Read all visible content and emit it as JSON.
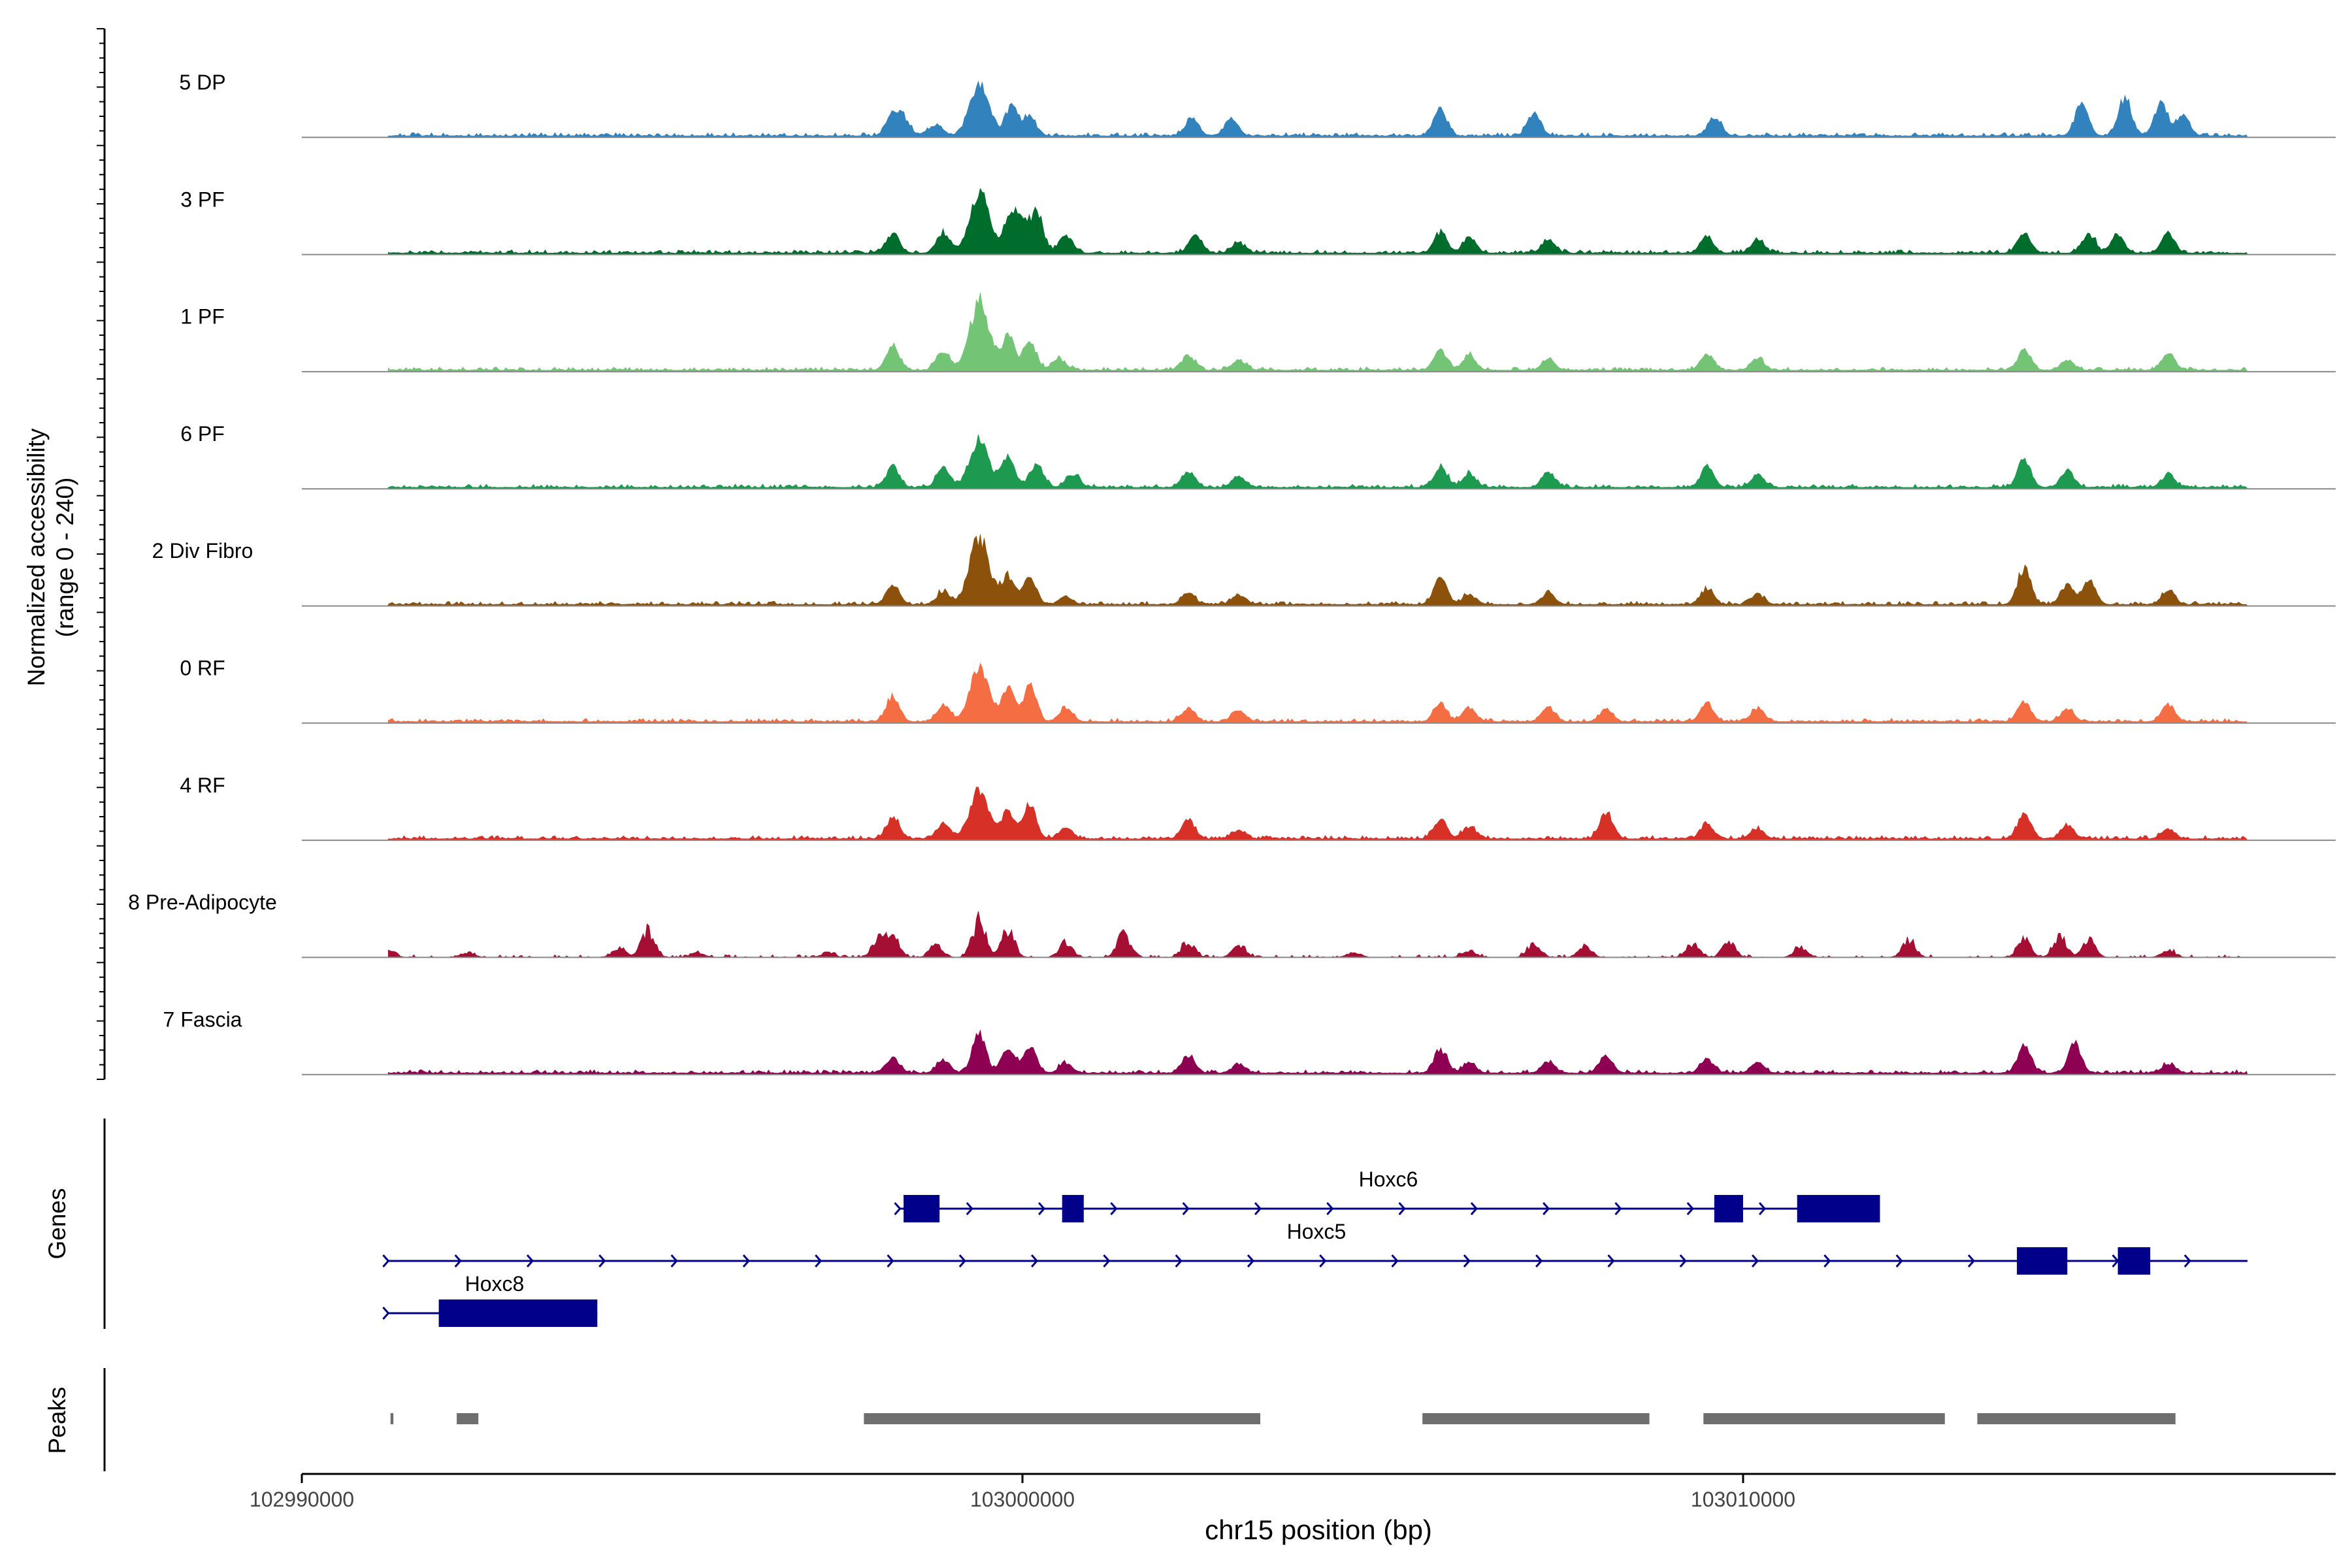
{
  "chart_data": {
    "type": "area",
    "title": "",
    "xlabel": "chr15 position (bp)",
    "ylabel_line1": "Normalized accessibility",
    "ylabel_line2": "(range 0 - 240)",
    "y_range": [
      0,
      240
    ],
    "x_range": [
      102990000,
      103018500
    ],
    "x_ticks": [
      102990000,
      103000000,
      103010000
    ],
    "x_tick_labels": [
      "102990000",
      "103000000",
      "103010000"
    ],
    "tracks": [
      {
        "name": "5 DP",
        "color": "#3182bd",
        "type": "dp",
        "peaks": [
          [
            102999400,
            150
          ],
          [
            102999850,
            90
          ],
          [
            103000100,
            55
          ],
          [
            102998200,
            60
          ],
          [
            102998350,
            45
          ],
          [
            102998800,
            35
          ],
          [
            103002350,
            55
          ],
          [
            103002900,
            50
          ],
          [
            103005800,
            80
          ],
          [
            103007100,
            70
          ],
          [
            103009600,
            55
          ],
          [
            103014700,
            100
          ],
          [
            103015300,
            110
          ],
          [
            103015800,
            90
          ],
          [
            103016100,
            65
          ]
        ]
      },
      {
        "name": "3 PF",
        "color": "#006d2c",
        "type": "standard",
        "peaks": [
          [
            102999400,
            180
          ],
          [
            102999900,
            130
          ],
          [
            103000200,
            110
          ],
          [
            102998200,
            60
          ],
          [
            102998900,
            60
          ],
          [
            103000600,
            50
          ],
          [
            103002400,
            50
          ],
          [
            103003000,
            30
          ],
          [
            103005800,
            60
          ],
          [
            103006200,
            45
          ],
          [
            103007300,
            40
          ],
          [
            103009500,
            45
          ],
          [
            103010200,
            40
          ],
          [
            103013900,
            60
          ],
          [
            103014800,
            55
          ],
          [
            103015200,
            50
          ],
          [
            103015900,
            60
          ]
        ]
      },
      {
        "name": "1 PF",
        "color": "#74c476",
        "type": "standard",
        "peaks": [
          [
            102999400,
            205
          ],
          [
            102999800,
            100
          ],
          [
            103000100,
            80
          ],
          [
            102998200,
            70
          ],
          [
            102998900,
            55
          ],
          [
            103000500,
            35
          ],
          [
            103002300,
            45
          ],
          [
            103003000,
            30
          ],
          [
            103005800,
            60
          ],
          [
            103006200,
            45
          ],
          [
            103007300,
            30
          ],
          [
            103009500,
            50
          ],
          [
            103010200,
            35
          ],
          [
            103013900,
            60
          ],
          [
            103014500,
            30
          ],
          [
            103015900,
            50
          ]
        ]
      },
      {
        "name": "6 PF",
        "color": "#1d9a4f",
        "type": "standard",
        "peaks": [
          [
            102999400,
            145
          ],
          [
            102999800,
            90
          ],
          [
            103000200,
            70
          ],
          [
            102998200,
            60
          ],
          [
            102998900,
            55
          ],
          [
            103000700,
            40
          ],
          [
            103002300,
            45
          ],
          [
            103003000,
            35
          ],
          [
            103005800,
            60
          ],
          [
            103006200,
            40
          ],
          [
            103007300,
            45
          ],
          [
            103009500,
            60
          ],
          [
            103010200,
            40
          ],
          [
            103013900,
            85
          ],
          [
            103014500,
            50
          ],
          [
            103015900,
            40
          ]
        ]
      },
      {
        "name": "2 Div Fibro",
        "color": "#8c510a",
        "type": "standard",
        "peaks": [
          [
            102999400,
            200
          ],
          [
            102999800,
            85
          ],
          [
            103000100,
            80
          ],
          [
            102998200,
            60
          ],
          [
            102998900,
            40
          ],
          [
            103000600,
            25
          ],
          [
            103002300,
            35
          ],
          [
            103003000,
            25
          ],
          [
            103005800,
            75
          ],
          [
            103006200,
            30
          ],
          [
            103007300,
            35
          ],
          [
            103009500,
            45
          ],
          [
            103010200,
            30
          ],
          [
            103013900,
            110
          ],
          [
            103014500,
            60
          ],
          [
            103014800,
            70
          ],
          [
            103015900,
            40
          ]
        ]
      },
      {
        "name": "0 RF",
        "color": "#f46d43",
        "type": "standard",
        "peaks": [
          [
            102999400,
            155
          ],
          [
            102999800,
            100
          ],
          [
            103000100,
            105
          ],
          [
            102998200,
            75
          ],
          [
            102998900,
            50
          ],
          [
            103000600,
            40
          ],
          [
            103002300,
            40
          ],
          [
            103003000,
            35
          ],
          [
            103005800,
            50
          ],
          [
            103006200,
            40
          ],
          [
            103007300,
            40
          ],
          [
            103008100,
            35
          ],
          [
            103009500,
            55
          ],
          [
            103010200,
            40
          ],
          [
            103013900,
            60
          ],
          [
            103014500,
            35
          ],
          [
            103015900,
            50
          ]
        ]
      },
      {
        "name": "4 RF",
        "color": "#d73027",
        "type": "standard",
        "peaks": [
          [
            102999400,
            140
          ],
          [
            102999800,
            80
          ],
          [
            103000100,
            100
          ],
          [
            102998200,
            60
          ],
          [
            102998900,
            45
          ],
          [
            103000600,
            30
          ],
          [
            103002300,
            55
          ],
          [
            103003000,
            25
          ],
          [
            103005800,
            55
          ],
          [
            103006200,
            35
          ],
          [
            103008100,
            80
          ],
          [
            103009500,
            45
          ],
          [
            103010200,
            30
          ],
          [
            103013900,
            75
          ],
          [
            103014500,
            40
          ],
          [
            103015900,
            30
          ]
        ]
      },
      {
        "name": "8 Pre-Adipocyte",
        "color": "#a50f33",
        "type": "adipo",
        "peaks": [
          [
            102991200,
            25
          ],
          [
            102992300,
            15
          ],
          [
            102994400,
            30
          ],
          [
            102994800,
            80
          ],
          [
            102995500,
            15
          ],
          [
            102997300,
            15
          ],
          [
            102998000,
            50
          ],
          [
            102998200,
            65
          ],
          [
            102998800,
            35
          ],
          [
            102999400,
            110
          ],
          [
            102999800,
            80
          ],
          [
            103000600,
            45
          ],
          [
            103001400,
            70
          ],
          [
            103002300,
            45
          ],
          [
            103003000,
            35
          ],
          [
            103004600,
            15
          ],
          [
            103006200,
            20
          ],
          [
            103007100,
            40
          ],
          [
            103007800,
            30
          ],
          [
            103009300,
            40
          ],
          [
            103009800,
            45
          ],
          [
            103010800,
            30
          ],
          [
            103012300,
            50
          ],
          [
            103013900,
            55
          ],
          [
            103014400,
            60
          ],
          [
            103014800,
            50
          ],
          [
            103015900,
            20
          ]
        ]
      },
      {
        "name": "7 Fascia",
        "color": "#8e0152",
        "type": "standard",
        "peaks": [
          [
            102999400,
            115
          ],
          [
            102999800,
            70
          ],
          [
            103000100,
            80
          ],
          [
            102998200,
            45
          ],
          [
            102998900,
            40
          ],
          [
            103000600,
            30
          ],
          [
            103002300,
            50
          ],
          [
            103003000,
            25
          ],
          [
            103005800,
            70
          ],
          [
            103006200,
            30
          ],
          [
            103007300,
            35
          ],
          [
            103008100,
            55
          ],
          [
            103009500,
            40
          ],
          [
            103010200,
            30
          ],
          [
            103013900,
            80
          ],
          [
            103014600,
            85
          ],
          [
            103015900,
            25
          ]
        ]
      }
    ],
    "genes_label": "Genes",
    "genes": [
      {
        "name": "Hoxc6",
        "strand": "+",
        "start": 102998300,
        "end": 103011800,
        "exons": [
          [
            102998350,
            102998850
          ],
          [
            103000550,
            103000850
          ],
          [
            103009600,
            103010000
          ],
          [
            103010750,
            103011900
          ]
        ]
      },
      {
        "name": "Hoxc5",
        "strand": "+",
        "start": 102991200,
        "end": 103017000,
        "exons": [
          [
            103013800,
            103014500
          ],
          [
            103015200,
            103015650
          ]
        ]
      },
      {
        "name": "Hoxc8",
        "strand": "+",
        "start": 102991200,
        "end": 102994100,
        "exons": [
          [
            102991900,
            102994100
          ]
        ]
      }
    ],
    "peaks_label": "Peaks",
    "peak_regions": [
      [
        102991230,
        102991270
      ],
      [
        102992150,
        102992450
      ],
      [
        102997800,
        103003300
      ],
      [
        103005550,
        103008700
      ],
      [
        103009450,
        103012800
      ],
      [
        103013250,
        103016000
      ]
    ]
  }
}
